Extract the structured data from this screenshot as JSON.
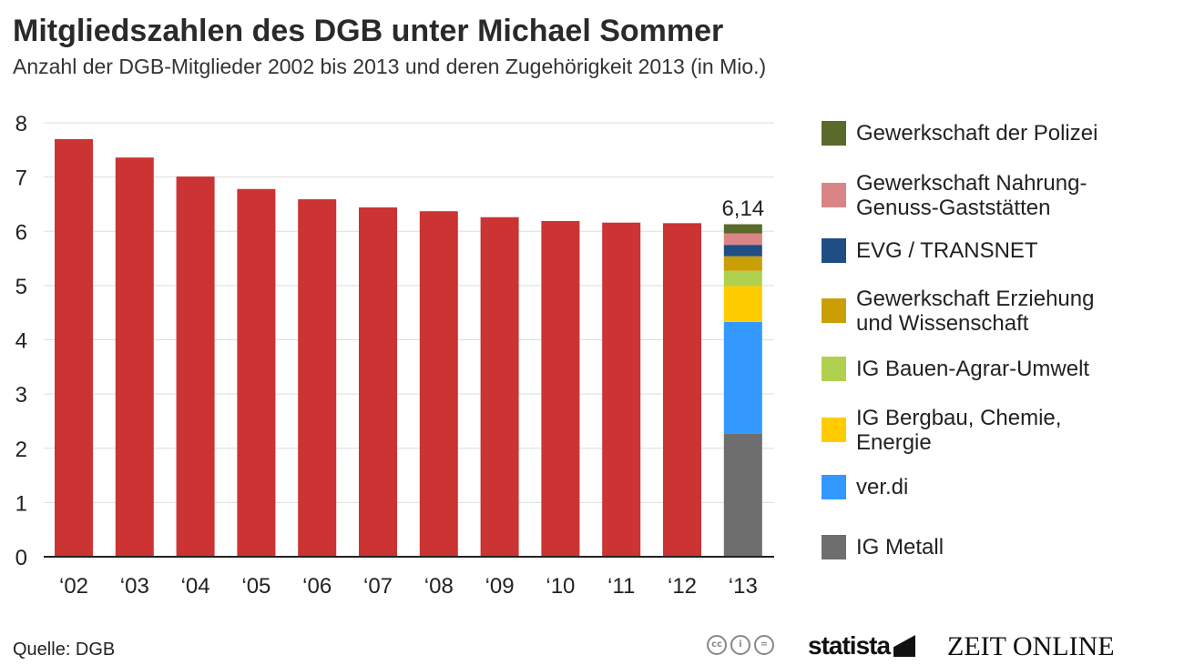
{
  "header": {
    "title": "Mitgliedszahlen des DGB unter Michael Sommer",
    "subtitle": "Anzahl der DGB-Mitglieder 2002 bis 2013 und deren Zugehörigkeit 2013 (in Mio.)"
  },
  "footer": {
    "source": "Quelle: DGB",
    "statista": "statista",
    "zeit": "ZEIT ONLINE",
    "cc_icons": [
      "cc-icon",
      "by-icon",
      "nd-icon"
    ]
  },
  "colors": {
    "bar": "#cc3333",
    "grid": "#dddddd",
    "axis": "#222222",
    "IG Metall": "#6e6e6e",
    "ver.di": "#3399ff",
    "IG Bergbau, Chemie, Energie": "#ffcc00",
    "IG Bauen-Agrar-Umwelt": "#b0d050",
    "Gewerkschaft Erziehung und Wissenschaft": "#c99f05",
    "EVG / TRANSNET": "#1f4e85",
    "Gewerkschaft Nahrung-Genuss-Gaststätten": "#d98585",
    "Gewerkschaft der Polizei": "#5a6a2a"
  },
  "chart_data": {
    "type": "bar",
    "title": "Mitgliedszahlen des DGB unter Michael Sommer",
    "subtitle": "Anzahl der DGB-Mitglieder 2002 bis 2013 und deren Zugehörigkeit 2013 (in Mio.)",
    "categories": [
      "‘02",
      "‘03",
      "‘04",
      "‘05",
      "‘06",
      "‘07",
      "‘08",
      "‘09",
      "‘10",
      "‘11",
      "‘12",
      "‘13"
    ],
    "totals": [
      7.7,
      7.36,
      7.01,
      6.78,
      6.59,
      6.44,
      6.37,
      6.26,
      6.19,
      6.16,
      6.15,
      6.14
    ],
    "yticks": [
      0,
      1,
      2,
      3,
      4,
      5,
      6,
      7,
      8
    ],
    "ylim": [
      0,
      8
    ],
    "grid": true,
    "legend_position": "right",
    "stacked_category": "‘13",
    "stacked_label": "6,14",
    "series": [
      {
        "name": "IG Metall",
        "value": 2.27
      },
      {
        "name": "ver.di",
        "value": 2.06
      },
      {
        "name": "IG Bergbau, Chemie, Energie",
        "value": 0.66
      },
      {
        "name": "IG Bauen-Agrar-Umwelt",
        "value": 0.28
      },
      {
        "name": "Gewerkschaft Erziehung und Wissenschaft",
        "value": 0.27
      },
      {
        "name": "EVG / TRANSNET",
        "value": 0.21
      },
      {
        "name": "Gewerkschaft Nahrung-Genuss-Gaststätten",
        "value": 0.21
      },
      {
        "name": "Gewerkschaft der Polizei",
        "value": 0.17
      }
    ]
  },
  "legend": [
    {
      "label_lines": [
        "Gewerkschaft der Polizei"
      ],
      "series": "Gewerkschaft der Polizei"
    },
    {
      "label_lines": [
        "Gewerkschaft Nahrung-",
        "Genuss-Gaststätten"
      ],
      "series": "Gewerkschaft Nahrung-Genuss-Gaststätten"
    },
    {
      "label_lines": [
        "EVG / TRANSNET"
      ],
      "series": "EVG / TRANSNET"
    },
    {
      "label_lines": [
        "Gewerkschaft Erziehung",
        "und Wissenschaft"
      ],
      "series": "Gewerkschaft Erziehung und Wissenschaft"
    },
    {
      "label_lines": [
        "IG Bauen-Agrar-Umwelt"
      ],
      "series": "IG Bauen-Agrar-Umwelt"
    },
    {
      "label_lines": [
        "IG Bergbau, Chemie,",
        "Energie"
      ],
      "series": "IG Bergbau, Chemie, Energie"
    },
    {
      "label_lines": [
        "ver.di"
      ],
      "series": "ver.di"
    },
    {
      "label_lines": [
        "IG Metall"
      ],
      "series": "IG Metall"
    }
  ]
}
